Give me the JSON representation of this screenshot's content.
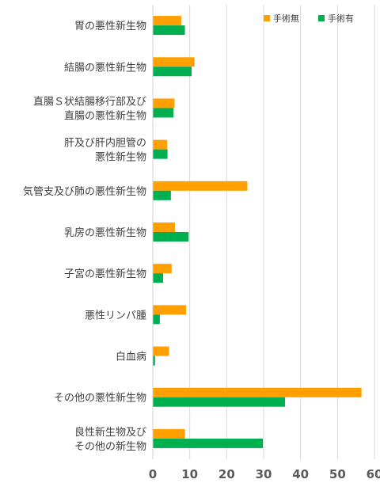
{
  "chart_data": {
    "type": "bar",
    "orientation": "horizontal",
    "categories": [
      [
        "胃の悪性新生物"
      ],
      [
        "結腸の悪性新生物"
      ],
      [
        "直腸Ｓ状結腸移行部及び",
        "直腸の悪性新生物"
      ],
      [
        "肝及び肝内胆管の",
        "悪性新生物"
      ],
      [
        "気管支及び肺の悪性新生物"
      ],
      [
        "乳房の悪性新生物"
      ],
      [
        "子宮の悪性新生物"
      ],
      [
        "悪性リンパ腫"
      ],
      [
        "白血病"
      ],
      [
        "その他の悪性新生物"
      ],
      [
        "良性新生物及び",
        "その他の新生物"
      ]
    ],
    "series": [
      {
        "name": "手術無",
        "color": "#FFA000",
        "values": [
          7.7,
          11.3,
          5.9,
          3.9,
          25.6,
          6.0,
          5.1,
          9.0,
          4.4,
          56.5,
          8.7
        ]
      },
      {
        "name": "手術有",
        "color": "#00B050",
        "values": [
          8.7,
          10.5,
          5.6,
          4.0,
          4.9,
          9.7,
          2.8,
          1.9,
          0.6,
          35.8,
          29.8
        ]
      }
    ],
    "xlim": [
      0,
      60
    ],
    "xticks": [
      "0",
      "10",
      "20",
      "30",
      "40",
      "50",
      "60"
    ],
    "grid": true,
    "legend_position": "top-right"
  }
}
